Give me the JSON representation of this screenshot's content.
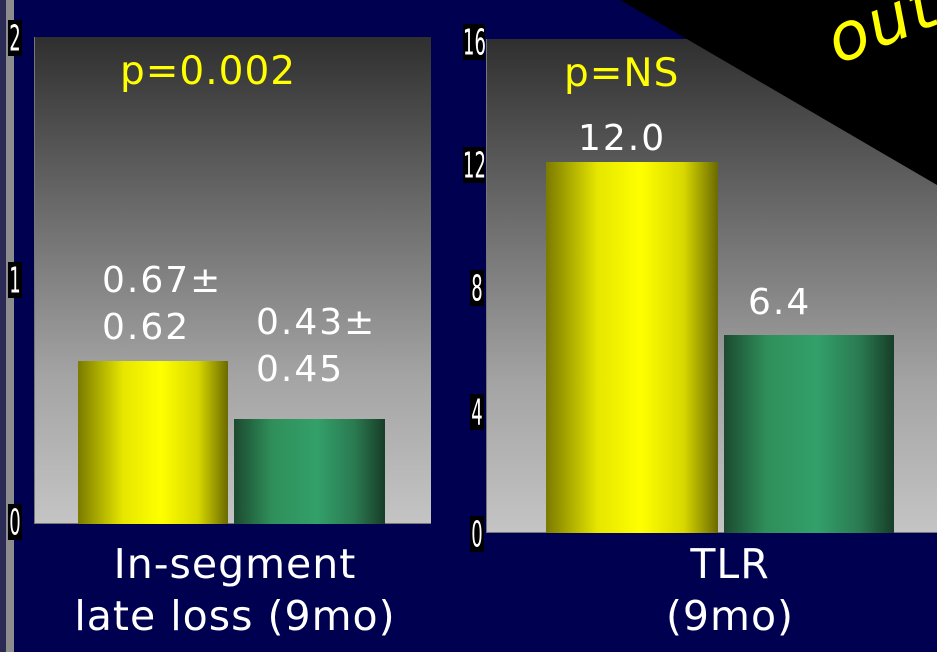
{
  "chart_data": [
    {
      "type": "bar",
      "categories": [
        "yellow",
        "green"
      ],
      "values": [
        0.67,
        0.43
      ],
      "value_labels": [
        "0.67±\n0.62",
        "0.43±\n0.45"
      ],
      "bar_colors": [
        "#ffff00",
        "#2f9a64"
      ],
      "annotation": "p=0.002",
      "xlabel": "In-segment\nlate loss (9mo)",
      "yticks": [
        "0",
        "1",
        "2"
      ],
      "ylim": [
        0,
        2
      ],
      "grid": false
    },
    {
      "type": "bar",
      "categories": [
        "yellow",
        "green"
      ],
      "values": [
        12.0,
        6.4
      ],
      "value_labels": [
        "12.0",
        "6.4"
      ],
      "bar_colors": [
        "#ffff00",
        "#2f9a64"
      ],
      "annotation": "p=NS",
      "xlabel": "TLR\n(9mo)",
      "yticks": [
        "0",
        "4",
        "8",
        "12",
        "16"
      ],
      "ylim": [
        0,
        16
      ],
      "grid": false
    }
  ],
  "banner": {
    "text": "outcome",
    "color": "#ffff00"
  }
}
